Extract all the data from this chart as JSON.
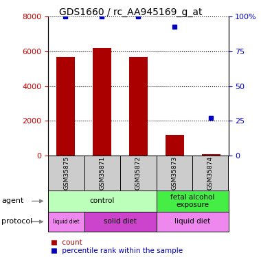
{
  "title": "GDS1660 / rc_AA945169_g_at",
  "samples": [
    "GSM35875",
    "GSM35871",
    "GSM35872",
    "GSM35873",
    "GSM35874"
  ],
  "counts": [
    5700,
    6200,
    5700,
    1200,
    80
  ],
  "percentiles": [
    100,
    100,
    100,
    93,
    27
  ],
  "ylim_left": [
    0,
    8000
  ],
  "ylim_right": [
    0,
    100
  ],
  "yticks_left": [
    0,
    2000,
    4000,
    6000,
    8000
  ],
  "yticks_right": [
    0,
    25,
    50,
    75,
    100
  ],
  "bar_color": "#aa0000",
  "dot_color": "#0000bb",
  "agent_groups": [
    {
      "label": "control",
      "start": 0,
      "end": 3,
      "color": "#bbffbb"
    },
    {
      "label": "fetal alcohol\nexposure",
      "start": 3,
      "end": 5,
      "color": "#44ee44"
    }
  ],
  "protocol_groups": [
    {
      "label": "liquid diet",
      "start": 0,
      "end": 1,
      "color": "#ee88ee"
    },
    {
      "label": "solid diet",
      "start": 1,
      "end": 3,
      "color": "#cc44cc"
    },
    {
      "label": "liquid diet",
      "start": 3,
      "end": 5,
      "color": "#ee88ee"
    }
  ],
  "left_ylabel_color": "#cc0000",
  "right_ylabel_color": "#0000cc",
  "right_ytick_labels": [
    "0",
    "25",
    "50",
    "75",
    "100%"
  ],
  "sample_box_color": "#cccccc",
  "legend_red_label": "count",
  "legend_blue_label": "percentile rank within the sample"
}
